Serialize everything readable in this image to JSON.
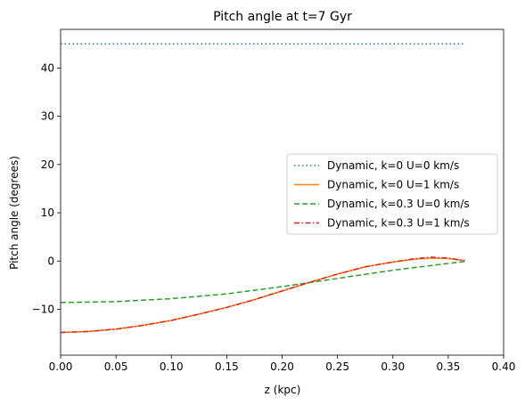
{
  "chart_data": {
    "type": "line",
    "title": "Pitch angle at t=7 Gyr",
    "xlabel": "z (kpc)",
    "ylabel": "Pitch angle (degrees)",
    "xlim": [
      0.0,
      0.4
    ],
    "ylim": [
      -19.5,
      48.0
    ],
    "xticks": [
      "0.00",
      "0.05",
      "0.10",
      "0.15",
      "0.20",
      "0.25",
      "0.30",
      "0.35",
      "0.40"
    ],
    "xtick_values": [
      0.0,
      0.05,
      0.1,
      0.15,
      0.2,
      0.25,
      0.3,
      0.35,
      0.4
    ],
    "yticks": [
      "−10",
      "0",
      "10",
      "20",
      "30",
      "40"
    ],
    "ytick_values": [
      -10,
      0,
      10,
      20,
      30,
      40
    ],
    "grid": false,
    "legend_position": "center-right",
    "series": [
      {
        "name": "Dynamic, k=0 U=0 km/s",
        "color": "#1f77b4",
        "style": "dotted",
        "x": [
          0.0,
          0.05,
          0.1,
          0.15,
          0.2,
          0.25,
          0.3,
          0.35,
          0.365
        ],
        "y": [
          45,
          45,
          45,
          45,
          45,
          45,
          45,
          45,
          45
        ]
      },
      {
        "name": "Dynamic, k=0 U=1 km/s",
        "color": "#ff7f0e",
        "style": "solid",
        "x": [
          0.0,
          0.025,
          0.05,
          0.075,
          0.1,
          0.125,
          0.15,
          0.175,
          0.2,
          0.225,
          0.25,
          0.275,
          0.3,
          0.32,
          0.335,
          0.35,
          0.365
        ],
        "y": [
          -14.8,
          -14.6,
          -14.1,
          -13.3,
          -12.3,
          -11.0,
          -9.6,
          -8.0,
          -6.2,
          -4.4,
          -2.7,
          -1.2,
          -0.2,
          0.4,
          0.6,
          0.5,
          0.1
        ]
      },
      {
        "name": "Dynamic, k=0.3 U=0 km/s",
        "color": "#2ca02c",
        "style": "dashed",
        "x": [
          0.0,
          0.05,
          0.1,
          0.15,
          0.2,
          0.25,
          0.3,
          0.35,
          0.365
        ],
        "y": [
          -8.6,
          -8.4,
          -7.8,
          -6.8,
          -5.3,
          -3.6,
          -1.9,
          -0.5,
          -0.1
        ]
      },
      {
        "name": "Dynamic, k=0.3 U=1 km/s",
        "color": "#d62728",
        "style": "dashdot",
        "x": [
          0.0,
          0.025,
          0.05,
          0.075,
          0.1,
          0.125,
          0.15,
          0.175,
          0.2,
          0.225,
          0.25,
          0.275,
          0.3,
          0.32,
          0.335,
          0.35,
          0.365
        ],
        "y": [
          -14.8,
          -14.6,
          -14.1,
          -13.3,
          -12.3,
          -11.0,
          -9.6,
          -8.0,
          -6.2,
          -4.4,
          -2.7,
          -1.2,
          -0.2,
          0.5,
          0.8,
          0.6,
          0.1
        ]
      }
    ]
  }
}
